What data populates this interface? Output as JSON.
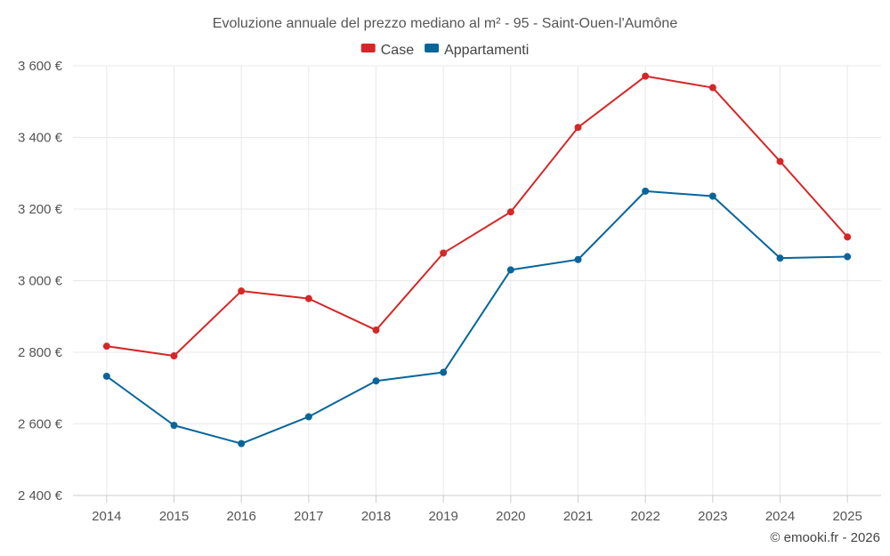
{
  "chart_data": {
    "type": "line",
    "title": "Evoluzione annuale del prezzo mediano al m² - 95 - Saint-Ouen-l'Aumône",
    "categories": [
      "2014",
      "2015",
      "2016",
      "2017",
      "2018",
      "2019",
      "2020",
      "2021",
      "2022",
      "2023",
      "2024",
      "2025"
    ],
    "ylim": [
      2400,
      3600
    ],
    "yticks": [
      2400,
      2600,
      2800,
      3000,
      3200,
      3400,
      3600
    ],
    "ytick_labels": [
      "2 400 €",
      "2 600 €",
      "2 800 €",
      "3 000 €",
      "3 200 €",
      "3 400 €",
      "3 600 €"
    ],
    "grid": true,
    "legend_position": "top-center",
    "series": [
      {
        "name": "Case",
        "color": "#d62728",
        "values": [
          2817,
          2790,
          2971,
          2950,
          2862,
          3077,
          3192,
          3428,
          3571,
          3539,
          3333,
          3122
        ]
      },
      {
        "name": "Appartamenti",
        "color": "#08659a",
        "values": [
          2733,
          2596,
          2545,
          2620,
          2720,
          2744,
          3030,
          3059,
          3250,
          3236,
          3063,
          3067
        ]
      }
    ]
  },
  "credit": "© emooki.fr - 2026"
}
